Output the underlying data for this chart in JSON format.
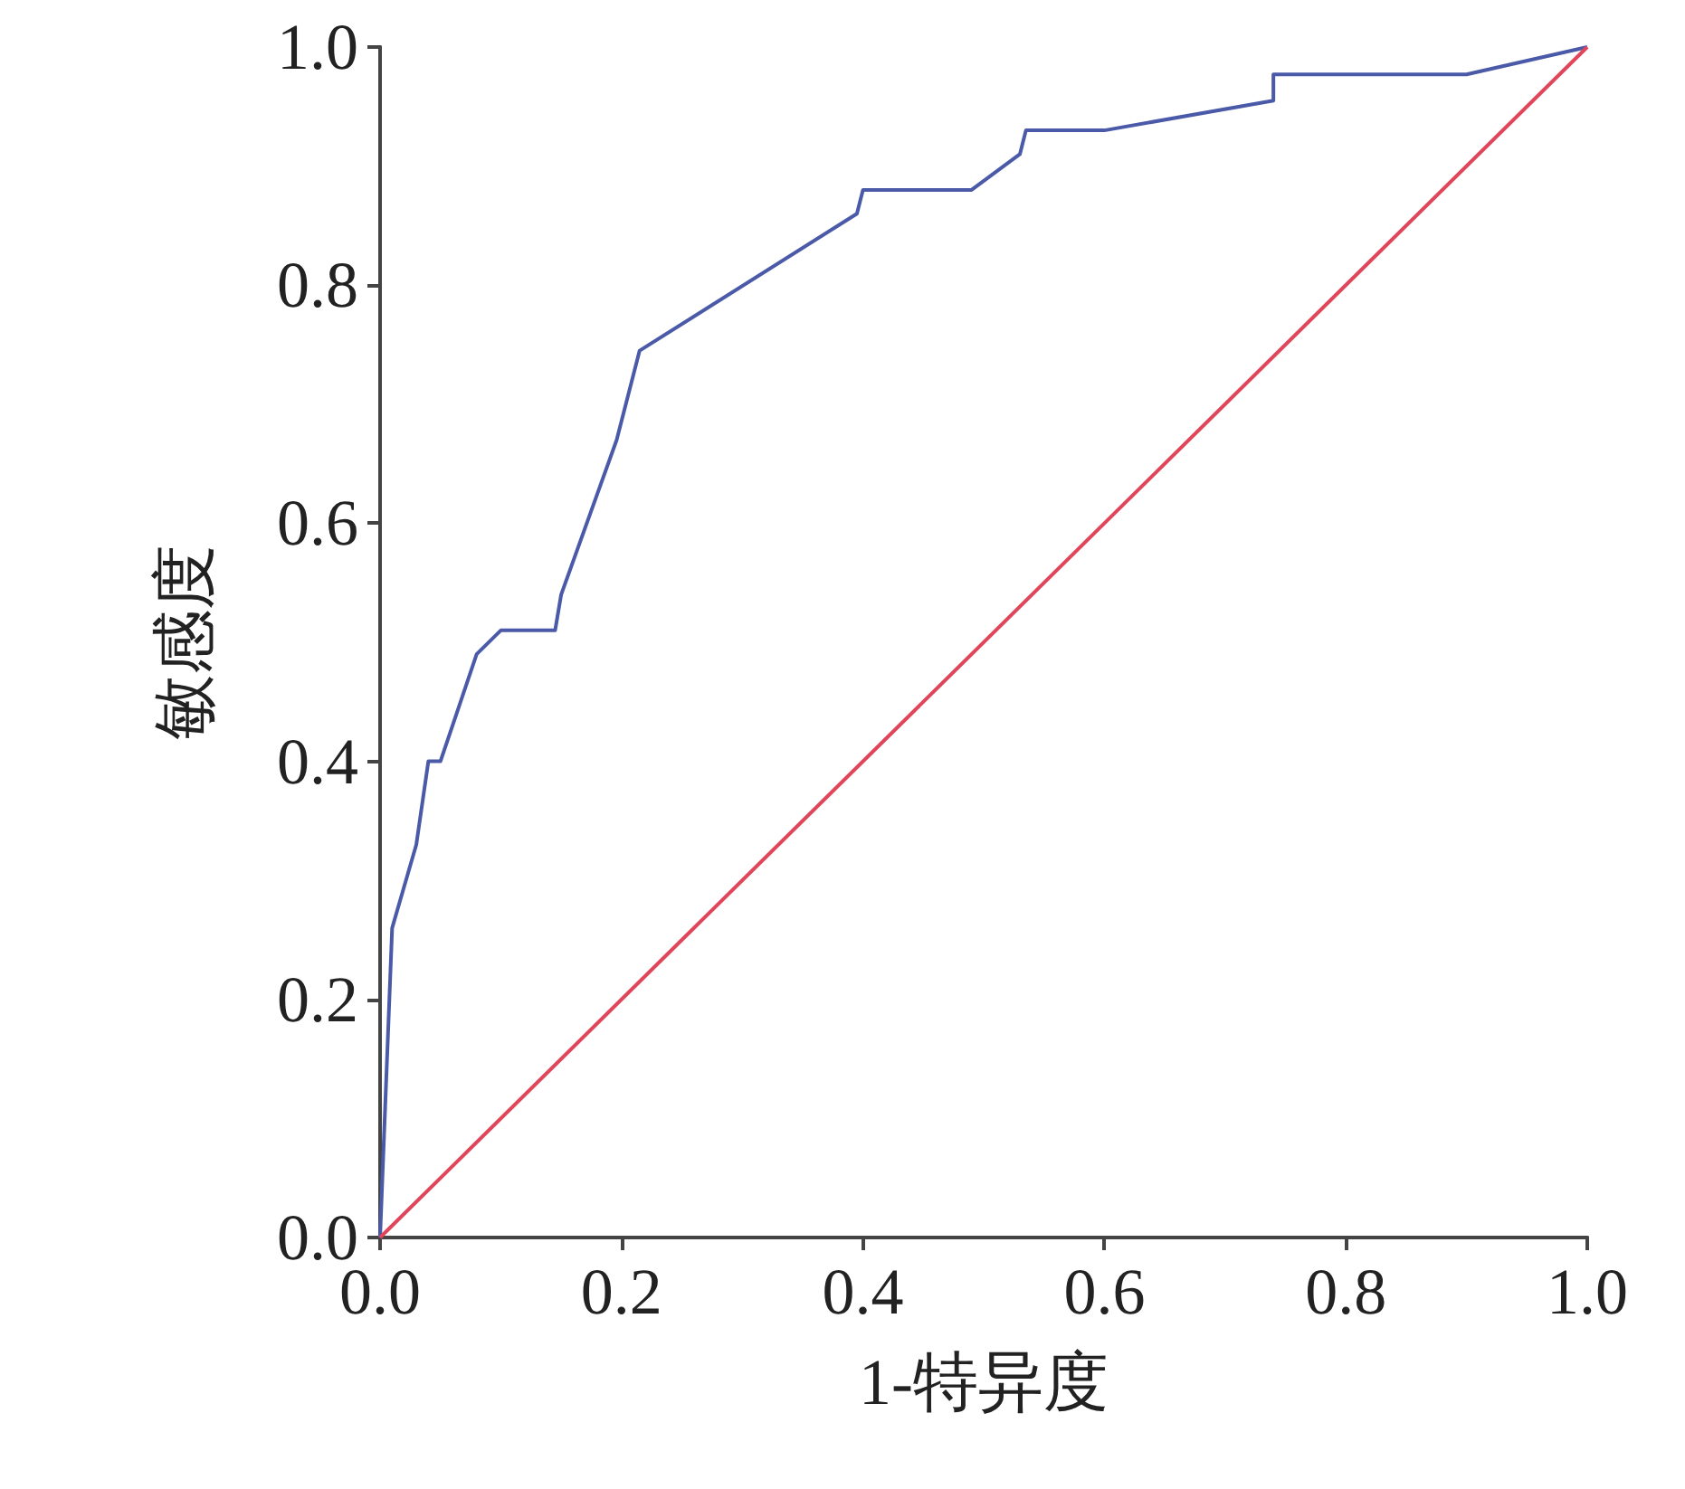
{
  "chart_data": {
    "type": "line",
    "xlabel": "1-特异度",
    "ylabel": "敏感度",
    "series": [
      {
        "color": "#4a5aa8",
        "x": [
          0,
          0.01,
          0.03,
          0.04,
          0.05,
          0.08,
          0.1,
          0.145,
          0.15,
          0.196,
          0.215,
          0.395,
          0.4,
          0.49,
          0.53,
          0.535,
          0.6,
          0.74,
          0.74,
          0.9,
          1
        ],
        "values": [
          0,
          0.26,
          0.33,
          0.4,
          0.4,
          0.49,
          0.51,
          0.51,
          0.54,
          0.67,
          0.745,
          0.86,
          0.88,
          0.88,
          0.91,
          0.93,
          0.93,
          0.955,
          0.977,
          0.977,
          1
        ]
      },
      {
        "color": "#e0455a",
        "x": [
          0,
          1
        ],
        "values": [
          0,
          1
        ]
      }
    ],
    "xlim": [
      0,
      1
    ],
    "ylim": [
      0,
      1
    ],
    "xticks": [
      {
        "value": 0,
        "label": "0.0"
      },
      {
        "value": 0.2,
        "label": "0.2"
      },
      {
        "value": 0.4,
        "label": "0.4"
      },
      {
        "value": 0.6,
        "label": "0.6"
      },
      {
        "value": 0.8,
        "label": "0.8"
      },
      {
        "value": 1,
        "label": "1.0"
      }
    ],
    "yticks": [
      {
        "value": 0,
        "label": "0.0"
      },
      {
        "value": 0.2,
        "label": "0.2"
      },
      {
        "value": 0.4,
        "label": "0.4"
      },
      {
        "value": 0.6,
        "label": "0.6"
      },
      {
        "value": 0.8,
        "label": "0.8"
      },
      {
        "value": 1,
        "label": "1.0"
      }
    ],
    "grid": false,
    "marker": "none"
  }
}
